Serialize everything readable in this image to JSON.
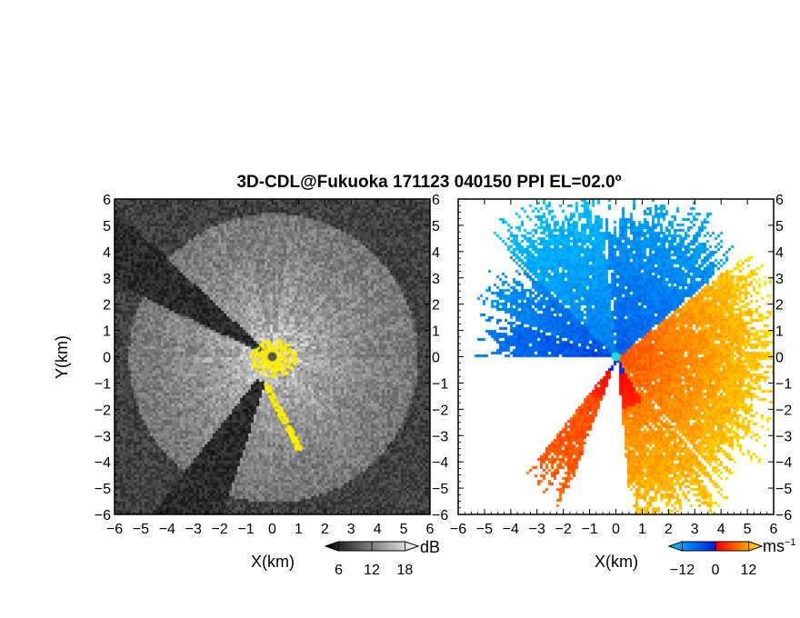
{
  "title": "3D-CDL@Fukuoka 171123 040150 PPI EL=02.0º",
  "chart_data": [
    {
      "type": "heatmap",
      "panel": "left",
      "field": "signal intensity (grayscale, fixed echoes in yellow)",
      "xlabel": "X(km)",
      "ylabel": "Y(km)",
      "xlim": [
        -6,
        6
      ],
      "ylim": [
        -6,
        6
      ],
      "xticks": [
        "−6",
        "−5",
        "−4",
        "−3",
        "−2",
        "−1",
        "0",
        "1",
        "2",
        "3",
        "4",
        "5",
        "6"
      ],
      "yticks": [
        "6",
        "5",
        "4",
        "3",
        "2",
        "1",
        "0",
        "−1",
        "−2",
        "−3",
        "−4",
        "−5",
        "−6"
      ],
      "colorbar": {
        "ticks": [
          "6",
          "12",
          "18"
        ],
        "values": [
          6,
          12,
          18
        ],
        "unit": "dB",
        "colors": [
          "#000000",
          "#ffffff"
        ]
      },
      "marker_color": "#555555",
      "clutter_color": "#ffee00"
    },
    {
      "type": "heatmap",
      "panel": "right",
      "field": "radial velocity",
      "xlabel": "X(km)",
      "ylabel": "",
      "xlim": [
        -6,
        6
      ],
      "ylim": [
        -6,
        6
      ],
      "xticks": [
        "−6",
        "−5",
        "−4",
        "−3",
        "−2",
        "−1",
        "0",
        "1",
        "2",
        "3",
        "4",
        "5",
        "6"
      ],
      "yticks": [
        "6",
        "5",
        "4",
        "3",
        "2",
        "1",
        "0",
        "−1",
        "−2",
        "−3",
        "−4",
        "−5",
        "−6"
      ],
      "colorbar": {
        "ticks": [
          "−12",
          "0",
          "12"
        ],
        "values": [
          -12,
          0,
          12
        ],
        "unit": "ms",
        "unit_sup": "−1",
        "colors": [
          "#00ccff",
          "#0022dd",
          "#ff0000",
          "#ffee00"
        ]
      },
      "marker_color": "#22dddd"
    }
  ]
}
